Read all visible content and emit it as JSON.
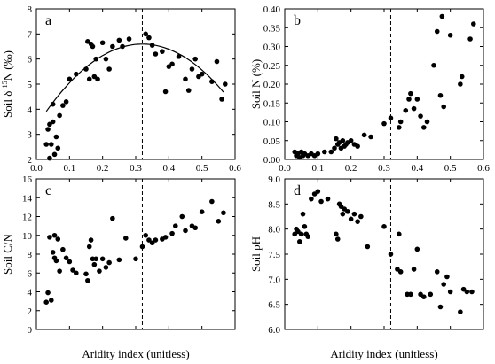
{
  "chart_data": [
    {
      "type": "scatter",
      "panel_label": "a",
      "ylabel_prefix": "Soil δ",
      "ylabel_sup": "15",
      "ylabel_suffix": "N (‰)",
      "xlim": [
        0.0,
        0.6
      ],
      "ylim": [
        2,
        8
      ],
      "xticks": [
        0.0,
        0.1,
        0.2,
        0.3,
        0.4,
        0.5,
        0.6
      ],
      "yticks": [
        2,
        3,
        4,
        5,
        6,
        7,
        8
      ],
      "xtick_labels_shown": true,
      "vline": 0.32,
      "fit": {
        "type": "quadratic",
        "coef": [
          -31.89,
          20.41,
          3.33
        ],
        "x_range": [
          0.03,
          0.565
        ]
      },
      "points": [
        [
          0.03,
          2.6
        ],
        [
          0.035,
          3.2
        ],
        [
          0.04,
          2.05
        ],
        [
          0.04,
          3.4
        ],
        [
          0.045,
          2.6
        ],
        [
          0.05,
          3.5
        ],
        [
          0.05,
          4.2
        ],
        [
          0.055,
          2.2
        ],
        [
          0.06,
          2.9
        ],
        [
          0.065,
          2.45
        ],
        [
          0.07,
          3.75
        ],
        [
          0.08,
          4.15
        ],
        [
          0.09,
          4.3
        ],
        [
          0.1,
          5.2
        ],
        [
          0.12,
          5.4
        ],
        [
          0.15,
          5.6
        ],
        [
          0.155,
          6.7
        ],
        [
          0.16,
          5.2
        ],
        [
          0.165,
          6.6
        ],
        [
          0.17,
          6.5
        ],
        [
          0.175,
          5.3
        ],
        [
          0.18,
          6.0
        ],
        [
          0.185,
          5.2
        ],
        [
          0.2,
          6.65
        ],
        [
          0.21,
          6.0
        ],
        [
          0.22,
          5.6
        ],
        [
          0.23,
          6.5
        ],
        [
          0.25,
          6.75
        ],
        [
          0.26,
          6.5
        ],
        [
          0.28,
          6.8
        ],
        [
          0.33,
          7.0
        ],
        [
          0.34,
          6.85
        ],
        [
          0.35,
          6.55
        ],
        [
          0.36,
          6.2
        ],
        [
          0.38,
          6.3
        ],
        [
          0.39,
          4.7
        ],
        [
          0.4,
          5.7
        ],
        [
          0.41,
          5.8
        ],
        [
          0.43,
          6.1
        ],
        [
          0.45,
          5.2
        ],
        [
          0.46,
          4.75
        ],
        [
          0.47,
          5.6
        ],
        [
          0.48,
          6.0
        ],
        [
          0.49,
          5.3
        ],
        [
          0.5,
          5.4
        ],
        [
          0.53,
          5.1
        ],
        [
          0.545,
          5.9
        ],
        [
          0.56,
          4.4
        ],
        [
          0.57,
          5.0
        ]
      ]
    },
    {
      "type": "scatter",
      "panel_label": "b",
      "ylabel": "Soil N (%)",
      "xlim": [
        0.0,
        0.6
      ],
      "ylim": [
        0.0,
        0.4
      ],
      "xticks": [
        0.0,
        0.1,
        0.2,
        0.3,
        0.4,
        0.5,
        0.6
      ],
      "yticks": [
        0.0,
        0.05,
        0.1,
        0.15,
        0.2,
        0.25,
        0.3,
        0.35,
        0.4
      ],
      "ytick_labels": [
        "0.00",
        "0.05",
        "0.10",
        "0.15",
        "0.20",
        "0.25",
        "0.30",
        "0.35",
        "0.40"
      ],
      "xtick_labels_shown": true,
      "vline": 0.32,
      "points": [
        [
          0.03,
          0.02
        ],
        [
          0.035,
          0.01
        ],
        [
          0.04,
          0.015
        ],
        [
          0.045,
          0.005
        ],
        [
          0.05,
          0.02
        ],
        [
          0.055,
          0.01
        ],
        [
          0.06,
          0.015
        ],
        [
          0.07,
          0.01
        ],
        [
          0.08,
          0.015
        ],
        [
          0.09,
          0.01
        ],
        [
          0.1,
          0.015
        ],
        [
          0.12,
          0.02
        ],
        [
          0.14,
          0.02
        ],
        [
          0.15,
          0.03
        ],
        [
          0.155,
          0.055
        ],
        [
          0.16,
          0.04
        ],
        [
          0.165,
          0.045
        ],
        [
          0.17,
          0.03
        ],
        [
          0.175,
          0.05
        ],
        [
          0.18,
          0.035
        ],
        [
          0.185,
          0.04
        ],
        [
          0.19,
          0.045
        ],
        [
          0.2,
          0.05
        ],
        [
          0.21,
          0.04
        ],
        [
          0.22,
          0.035
        ],
        [
          0.24,
          0.065
        ],
        [
          0.26,
          0.06
        ],
        [
          0.3,
          0.095
        ],
        [
          0.32,
          0.11
        ],
        [
          0.345,
          0.085
        ],
        [
          0.35,
          0.1
        ],
        [
          0.365,
          0.13
        ],
        [
          0.375,
          0.16
        ],
        [
          0.38,
          0.175
        ],
        [
          0.39,
          0.135
        ],
        [
          0.4,
          0.16
        ],
        [
          0.41,
          0.115
        ],
        [
          0.42,
          0.085
        ],
        [
          0.43,
          0.1
        ],
        [
          0.45,
          0.25
        ],
        [
          0.46,
          0.34
        ],
        [
          0.47,
          0.17
        ],
        [
          0.475,
          0.38
        ],
        [
          0.48,
          0.14
        ],
        [
          0.5,
          0.33
        ],
        [
          0.53,
          0.2
        ],
        [
          0.535,
          0.22
        ],
        [
          0.56,
          0.32
        ],
        [
          0.57,
          0.36
        ]
      ]
    },
    {
      "type": "scatter",
      "panel_label": "c",
      "ylabel": "Soil C/N",
      "xlim": [
        0.0,
        0.6
      ],
      "ylim": [
        0,
        16
      ],
      "xticks": [
        0.0,
        0.1,
        0.2,
        0.3,
        0.4,
        0.5,
        0.6
      ],
      "yticks": [
        0,
        2,
        4,
        6,
        8,
        10,
        12,
        14,
        16
      ],
      "xtick_labels_shown": false,
      "xlabel": "Aridity index (unitless)",
      "vline": 0.32,
      "points": [
        [
          0.03,
          2.9
        ],
        [
          0.035,
          3.9
        ],
        [
          0.04,
          9.8
        ],
        [
          0.045,
          3.1
        ],
        [
          0.05,
          8.2
        ],
        [
          0.055,
          7.6
        ],
        [
          0.055,
          10.0
        ],
        [
          0.06,
          7.3
        ],
        [
          0.065,
          9.6
        ],
        [
          0.07,
          6.2
        ],
        [
          0.08,
          8.5
        ],
        [
          0.09,
          7.6
        ],
        [
          0.1,
          7.2
        ],
        [
          0.11,
          6.3
        ],
        [
          0.12,
          6.0
        ],
        [
          0.15,
          5.9
        ],
        [
          0.155,
          5.2
        ],
        [
          0.16,
          8.8
        ],
        [
          0.165,
          9.5
        ],
        [
          0.17,
          7.5
        ],
        [
          0.175,
          6.9
        ],
        [
          0.18,
          7.5
        ],
        [
          0.19,
          6.2
        ],
        [
          0.2,
          7.5
        ],
        [
          0.21,
          6.6
        ],
        [
          0.22,
          7.1
        ],
        [
          0.23,
          11.8
        ],
        [
          0.25,
          7.4
        ],
        [
          0.27,
          9.7
        ],
        [
          0.3,
          7.5
        ],
        [
          0.32,
          8.8
        ],
        [
          0.33,
          10.0
        ],
        [
          0.34,
          9.5
        ],
        [
          0.35,
          9.2
        ],
        [
          0.36,
          9.5
        ],
        [
          0.38,
          9.6
        ],
        [
          0.39,
          9.8
        ],
        [
          0.41,
          10.2
        ],
        [
          0.42,
          11.0
        ],
        [
          0.44,
          12.0
        ],
        [
          0.45,
          10.5
        ],
        [
          0.47,
          11.0
        ],
        [
          0.48,
          10.8
        ],
        [
          0.5,
          12.5
        ],
        [
          0.53,
          13.6
        ],
        [
          0.55,
          11.5
        ],
        [
          0.565,
          12.4
        ]
      ]
    },
    {
      "type": "scatter",
      "panel_label": "d",
      "ylabel": "Soil pH",
      "xlim": [
        0.0,
        0.6
      ],
      "ylim": [
        6.0,
        9.0
      ],
      "xticks": [
        0.0,
        0.1,
        0.2,
        0.3,
        0.4,
        0.5,
        0.6
      ],
      "yticks": [
        6.0,
        6.5,
        7.0,
        7.5,
        8.0,
        8.5,
        9.0
      ],
      "ytick_labels": [
        "6.0",
        "6.5",
        "7.0",
        "7.5",
        "8.0",
        "8.5",
        "9.0"
      ],
      "xtick_labels_shown": false,
      "xlabel": "Aridity index (unitless)",
      "vline": 0.32,
      "points": [
        [
          0.03,
          7.9
        ],
        [
          0.035,
          8.0
        ],
        [
          0.04,
          7.95
        ],
        [
          0.045,
          7.75
        ],
        [
          0.05,
          7.9
        ],
        [
          0.055,
          8.3
        ],
        [
          0.06,
          8.05
        ],
        [
          0.065,
          7.9
        ],
        [
          0.07,
          7.85
        ],
        [
          0.08,
          8.6
        ],
        [
          0.09,
          8.7
        ],
        [
          0.1,
          8.75
        ],
        [
          0.11,
          8.55
        ],
        [
          0.13,
          8.6
        ],
        [
          0.155,
          7.9
        ],
        [
          0.16,
          7.8
        ],
        [
          0.165,
          8.5
        ],
        [
          0.17,
          8.45
        ],
        [
          0.175,
          8.3
        ],
        [
          0.18,
          8.4
        ],
        [
          0.19,
          8.35
        ],
        [
          0.2,
          8.2
        ],
        [
          0.21,
          8.3
        ],
        [
          0.22,
          8.15
        ],
        [
          0.23,
          8.25
        ],
        [
          0.25,
          7.65
        ],
        [
          0.3,
          8.05
        ],
        [
          0.32,
          7.5
        ],
        [
          0.34,
          7.2
        ],
        [
          0.345,
          7.9
        ],
        [
          0.35,
          7.15
        ],
        [
          0.37,
          6.7
        ],
        [
          0.38,
          6.7
        ],
        [
          0.39,
          7.2
        ],
        [
          0.4,
          7.6
        ],
        [
          0.41,
          6.7
        ],
        [
          0.42,
          6.65
        ],
        [
          0.44,
          6.7
        ],
        [
          0.46,
          7.15
        ],
        [
          0.47,
          6.45
        ],
        [
          0.48,
          6.9
        ],
        [
          0.49,
          7.05
        ],
        [
          0.5,
          6.75
        ],
        [
          0.53,
          6.35
        ],
        [
          0.54,
          6.8
        ],
        [
          0.55,
          6.75
        ],
        [
          0.565,
          6.75
        ]
      ]
    }
  ]
}
